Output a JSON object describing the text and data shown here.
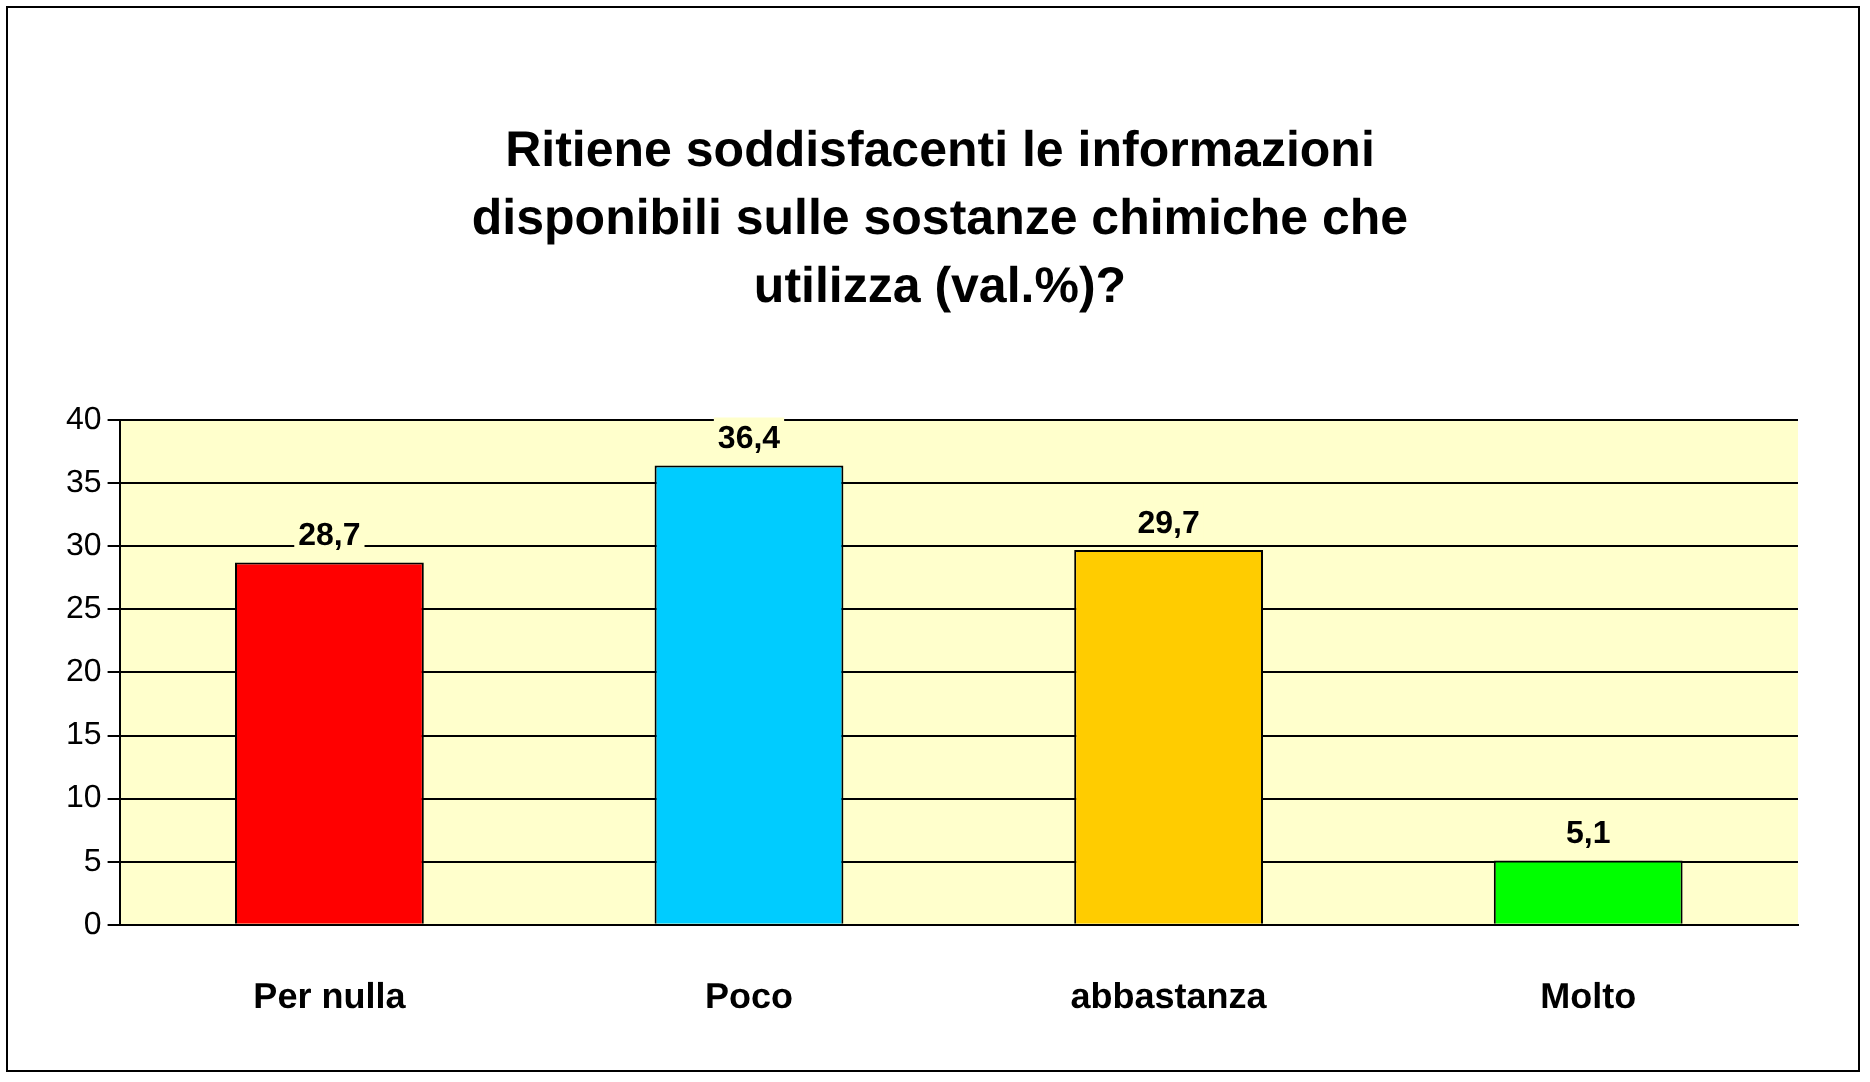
{
  "chart_data": {
    "type": "bar",
    "title": "Ritiene soddisfacenti le informazioni disponibili sulle sostanze chimiche che utilizza (val.%)?",
    "categories": [
      "Per nulla",
      "Poco",
      "abbastanza",
      "Molto"
    ],
    "values": [
      28.7,
      36.4,
      29.7,
      5.1
    ],
    "colors": [
      "#ff0000",
      "#00ccff",
      "#ffcc00",
      "#00ff00"
    ],
    "value_labels": [
      "28,7",
      "36,4",
      "29,7",
      "5,1"
    ],
    "ylim": [
      0,
      40
    ],
    "yticks": [
      0,
      5,
      10,
      15,
      20,
      25,
      30,
      35,
      40
    ],
    "grid": "y",
    "legend": false
  }
}
